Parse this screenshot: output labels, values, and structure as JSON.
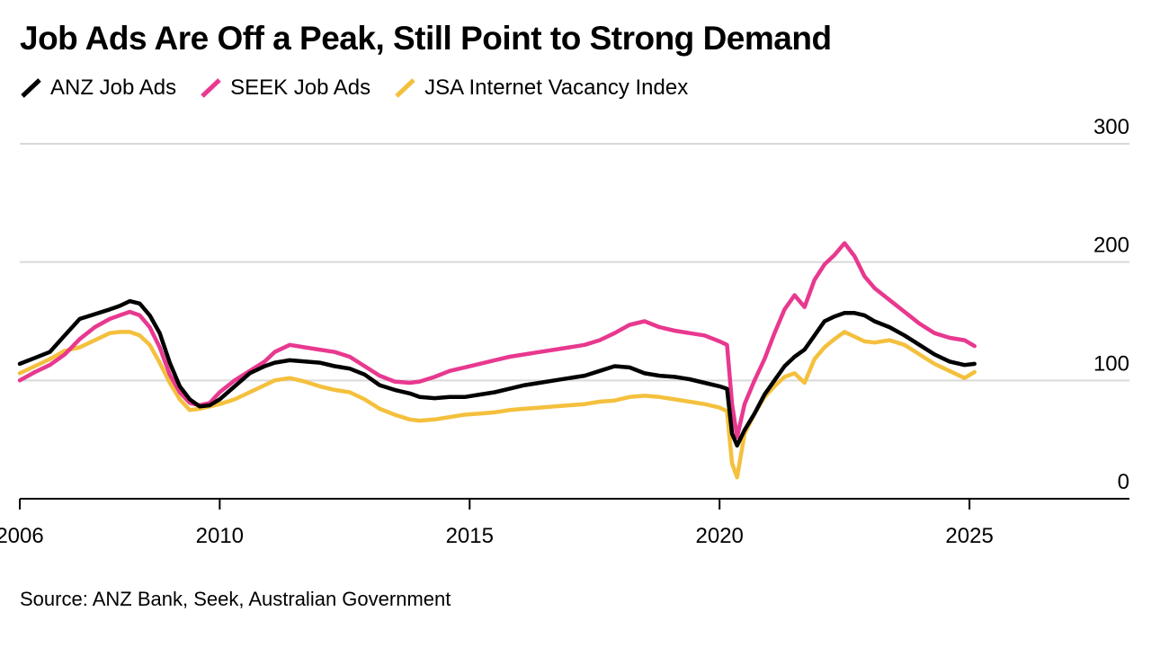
{
  "title": "Job Ads Are Off a Peak, Still Point to Strong Demand",
  "source": "Source: ANZ Bank, Seek, Australian Government",
  "chart_data": {
    "type": "line",
    "title": "Job Ads Are Off a Peak, Still Point to Strong Demand",
    "xlabel": "",
    "ylabel": "",
    "xlim": [
      2006,
      2028.2
    ],
    "ylim": [
      0,
      300
    ],
    "x_ticks": [
      2006,
      2010,
      2015,
      2020,
      2025
    ],
    "y_ticks": [
      0,
      100,
      200,
      300
    ],
    "grid": true,
    "legend_position": "top-left",
    "series": [
      {
        "name": "ANZ Job Ads",
        "color": "#000000",
        "points": [
          [
            2006.0,
            114
          ],
          [
            2006.3,
            119
          ],
          [
            2006.6,
            124
          ],
          [
            2006.9,
            138
          ],
          [
            2007.2,
            152
          ],
          [
            2007.5,
            156
          ],
          [
            2007.8,
            160
          ],
          [
            2008.0,
            163
          ],
          [
            2008.2,
            167
          ],
          [
            2008.4,
            165
          ],
          [
            2008.6,
            155
          ],
          [
            2008.8,
            140
          ],
          [
            2009.0,
            115
          ],
          [
            2009.2,
            95
          ],
          [
            2009.4,
            84
          ],
          [
            2009.6,
            78
          ],
          [
            2009.8,
            79
          ],
          [
            2010.0,
            84
          ],
          [
            2010.3,
            95
          ],
          [
            2010.6,
            106
          ],
          [
            2010.9,
            112
          ],
          [
            2011.1,
            115
          ],
          [
            2011.4,
            117
          ],
          [
            2011.7,
            116
          ],
          [
            2012.0,
            115
          ],
          [
            2012.3,
            112
          ],
          [
            2012.6,
            110
          ],
          [
            2012.9,
            105
          ],
          [
            2013.2,
            96
          ],
          [
            2013.5,
            92
          ],
          [
            2013.8,
            89
          ],
          [
            2014.0,
            86
          ],
          [
            2014.3,
            85
          ],
          [
            2014.6,
            86
          ],
          [
            2014.9,
            86
          ],
          [
            2015.2,
            88
          ],
          [
            2015.5,
            90
          ],
          [
            2015.8,
            93
          ],
          [
            2016.1,
            96
          ],
          [
            2016.4,
            98
          ],
          [
            2016.7,
            100
          ],
          [
            2017.0,
            102
          ],
          [
            2017.3,
            104
          ],
          [
            2017.6,
            108
          ],
          [
            2017.9,
            112
          ],
          [
            2018.2,
            111
          ],
          [
            2018.5,
            106
          ],
          [
            2018.8,
            104
          ],
          [
            2019.1,
            103
          ],
          [
            2019.4,
            101
          ],
          [
            2019.7,
            98
          ],
          [
            2020.0,
            95
          ],
          [
            2020.15,
            93
          ],
          [
            2020.25,
            55
          ],
          [
            2020.35,
            45
          ],
          [
            2020.5,
            58
          ],
          [
            2020.7,
            72
          ],
          [
            2020.9,
            88
          ],
          [
            2021.1,
            100
          ],
          [
            2021.3,
            112
          ],
          [
            2021.5,
            120
          ],
          [
            2021.7,
            126
          ],
          [
            2021.9,
            138
          ],
          [
            2022.1,
            150
          ],
          [
            2022.3,
            154
          ],
          [
            2022.5,
            157
          ],
          [
            2022.7,
            157
          ],
          [
            2022.9,
            155
          ],
          [
            2023.1,
            150
          ],
          [
            2023.4,
            145
          ],
          [
            2023.7,
            138
          ],
          [
            2024.0,
            130
          ],
          [
            2024.3,
            122
          ],
          [
            2024.6,
            116
          ],
          [
            2024.9,
            113
          ],
          [
            2025.1,
            114
          ]
        ]
      },
      {
        "name": "SEEK Job Ads",
        "color": "#e8388f",
        "points": [
          [
            2006.0,
            100
          ],
          [
            2006.3,
            107
          ],
          [
            2006.6,
            113
          ],
          [
            2006.9,
            122
          ],
          [
            2007.2,
            135
          ],
          [
            2007.5,
            145
          ],
          [
            2007.8,
            152
          ],
          [
            2008.0,
            155
          ],
          [
            2008.2,
            158
          ],
          [
            2008.4,
            155
          ],
          [
            2008.6,
            145
          ],
          [
            2008.8,
            128
          ],
          [
            2009.0,
            105
          ],
          [
            2009.2,
            90
          ],
          [
            2009.4,
            81
          ],
          [
            2009.6,
            79
          ],
          [
            2009.8,
            81
          ],
          [
            2010.0,
            90
          ],
          [
            2010.3,
            100
          ],
          [
            2010.6,
            108
          ],
          [
            2010.9,
            116
          ],
          [
            2011.1,
            124
          ],
          [
            2011.4,
            130
          ],
          [
            2011.7,
            128
          ],
          [
            2012.0,
            126
          ],
          [
            2012.3,
            124
          ],
          [
            2012.6,
            120
          ],
          [
            2012.9,
            112
          ],
          [
            2013.2,
            104
          ],
          [
            2013.5,
            99
          ],
          [
            2013.8,
            98
          ],
          [
            2014.0,
            99
          ],
          [
            2014.3,
            103
          ],
          [
            2014.6,
            108
          ],
          [
            2014.9,
            111
          ],
          [
            2015.2,
            114
          ],
          [
            2015.5,
            117
          ],
          [
            2015.8,
            120
          ],
          [
            2016.1,
            122
          ],
          [
            2016.4,
            124
          ],
          [
            2016.7,
            126
          ],
          [
            2017.0,
            128
          ],
          [
            2017.3,
            130
          ],
          [
            2017.6,
            134
          ],
          [
            2017.9,
            140
          ],
          [
            2018.2,
            147
          ],
          [
            2018.5,
            150
          ],
          [
            2018.8,
            145
          ],
          [
            2019.1,
            142
          ],
          [
            2019.4,
            140
          ],
          [
            2019.7,
            138
          ],
          [
            2020.0,
            133
          ],
          [
            2020.15,
            130
          ],
          [
            2020.25,
            80
          ],
          [
            2020.35,
            52
          ],
          [
            2020.5,
            80
          ],
          [
            2020.7,
            100
          ],
          [
            2020.9,
            118
          ],
          [
            2021.1,
            140
          ],
          [
            2021.3,
            160
          ],
          [
            2021.5,
            172
          ],
          [
            2021.7,
            162
          ],
          [
            2021.9,
            185
          ],
          [
            2022.1,
            198
          ],
          [
            2022.3,
            206
          ],
          [
            2022.5,
            216
          ],
          [
            2022.7,
            205
          ],
          [
            2022.9,
            188
          ],
          [
            2023.1,
            178
          ],
          [
            2023.4,
            168
          ],
          [
            2023.7,
            158
          ],
          [
            2024.0,
            148
          ],
          [
            2024.3,
            140
          ],
          [
            2024.6,
            136
          ],
          [
            2024.9,
            134
          ],
          [
            2025.1,
            129
          ]
        ]
      },
      {
        "name": "JSA Internet Vacancy Index",
        "color": "#f4c03d",
        "points": [
          [
            2006.0,
            106
          ],
          [
            2006.3,
            112
          ],
          [
            2006.6,
            118
          ],
          [
            2006.9,
            125
          ],
          [
            2007.2,
            128
          ],
          [
            2007.5,
            134
          ],
          [
            2007.8,
            140
          ],
          [
            2008.0,
            141
          ],
          [
            2008.2,
            141
          ],
          [
            2008.4,
            138
          ],
          [
            2008.6,
            130
          ],
          [
            2008.8,
            115
          ],
          [
            2009.0,
            98
          ],
          [
            2009.2,
            84
          ],
          [
            2009.4,
            75
          ],
          [
            2009.6,
            76
          ],
          [
            2009.8,
            78
          ],
          [
            2010.0,
            80
          ],
          [
            2010.3,
            84
          ],
          [
            2010.6,
            90
          ],
          [
            2010.9,
            96
          ],
          [
            2011.1,
            100
          ],
          [
            2011.4,
            102
          ],
          [
            2011.7,
            99
          ],
          [
            2012.0,
            95
          ],
          [
            2012.3,
            92
          ],
          [
            2012.6,
            90
          ],
          [
            2012.9,
            84
          ],
          [
            2013.2,
            76
          ],
          [
            2013.5,
            71
          ],
          [
            2013.8,
            67
          ],
          [
            2014.0,
            66
          ],
          [
            2014.3,
            67
          ],
          [
            2014.6,
            69
          ],
          [
            2014.9,
            71
          ],
          [
            2015.2,
            72
          ],
          [
            2015.5,
            73
          ],
          [
            2015.8,
            75
          ],
          [
            2016.1,
            76
          ],
          [
            2016.4,
            77
          ],
          [
            2016.7,
            78
          ],
          [
            2017.0,
            79
          ],
          [
            2017.3,
            80
          ],
          [
            2017.6,
            82
          ],
          [
            2017.9,
            83
          ],
          [
            2018.2,
            86
          ],
          [
            2018.5,
            87
          ],
          [
            2018.8,
            86
          ],
          [
            2019.1,
            84
          ],
          [
            2019.4,
            82
          ],
          [
            2019.7,
            80
          ],
          [
            2020.0,
            77
          ],
          [
            2020.15,
            74
          ],
          [
            2020.25,
            30
          ],
          [
            2020.35,
            18
          ],
          [
            2020.5,
            55
          ],
          [
            2020.7,
            72
          ],
          [
            2020.9,
            86
          ],
          [
            2021.1,
            95
          ],
          [
            2021.3,
            103
          ],
          [
            2021.5,
            106
          ],
          [
            2021.7,
            98
          ],
          [
            2021.9,
            118
          ],
          [
            2022.1,
            128
          ],
          [
            2022.3,
            135
          ],
          [
            2022.5,
            141
          ],
          [
            2022.7,
            137
          ],
          [
            2022.9,
            133
          ],
          [
            2023.1,
            132
          ],
          [
            2023.4,
            134
          ],
          [
            2023.7,
            130
          ],
          [
            2024.0,
            122
          ],
          [
            2024.3,
            114
          ],
          [
            2024.6,
            108
          ],
          [
            2024.9,
            102
          ],
          [
            2025.1,
            107
          ]
        ]
      }
    ]
  }
}
